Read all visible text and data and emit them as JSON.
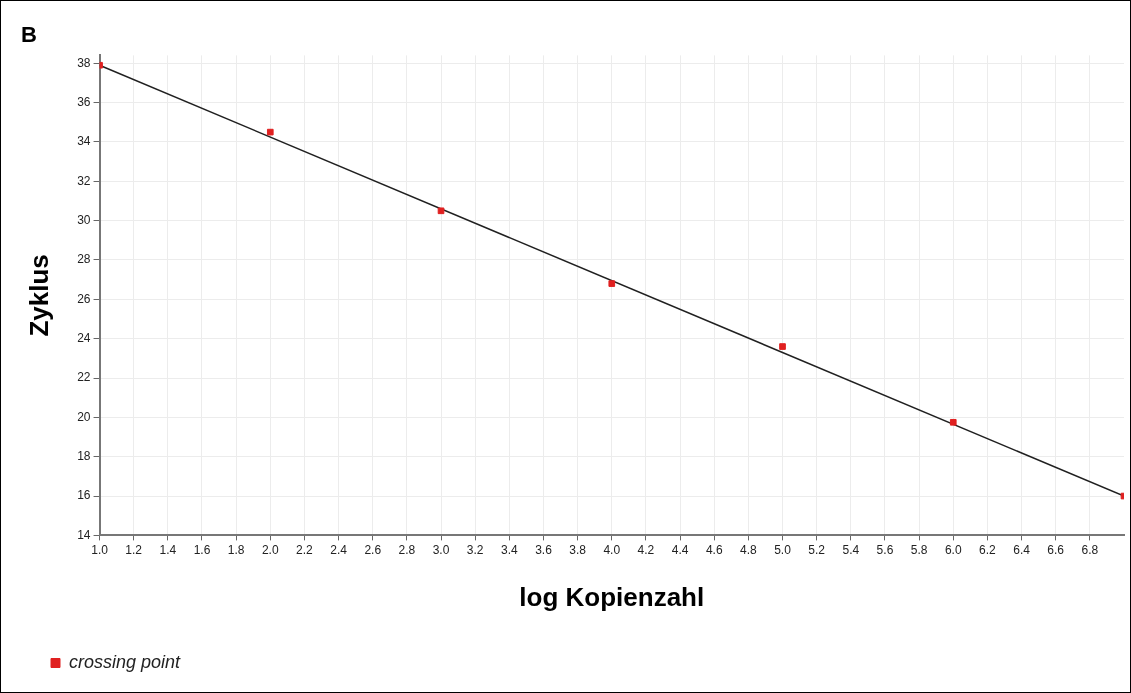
{
  "chart_data": {
    "type": "scatter",
    "title": "B",
    "xlabel": "log Kopienzahl",
    "ylabel": "Zyklus",
    "x": [
      1,
      2,
      3,
      4,
      5,
      6,
      7
    ],
    "series": [
      {
        "name": "crossing point",
        "color": "#e02020",
        "values": [
          37.9,
          34.5,
          30.5,
          26.8,
          23.6,
          19.75,
          16.0
        ],
        "marker": "square"
      },
      {
        "type": "line",
        "color": "#202020",
        "x": [
          1,
          7
        ],
        "values": [
          37.9,
          16.0
        ],
        "marker": "none"
      }
    ],
    "xlim": [
      1,
      7
    ],
    "ylim": [
      14,
      38.4
    ],
    "xticks": [
      {
        "value": 1,
        "label": "1.0"
      },
      {
        "value": 1.2,
        "label": "1.2"
      },
      {
        "value": 1.4,
        "label": "1.4"
      },
      {
        "value": 1.6,
        "label": "1.6"
      },
      {
        "value": 1.8,
        "label": "1.8"
      },
      {
        "value": 2,
        "label": "2.0"
      },
      {
        "value": 2.2,
        "label": "2.2"
      },
      {
        "value": 2.4,
        "label": "2.4"
      },
      {
        "value": 2.6,
        "label": "2.6"
      },
      {
        "value": 2.8,
        "label": "2.8"
      },
      {
        "value": 3,
        "label": "3.0"
      },
      {
        "value": 3.2,
        "label": "3.2"
      },
      {
        "value": 3.4,
        "label": "3.4"
      },
      {
        "value": 3.6,
        "label": "3.6"
      },
      {
        "value": 3.8,
        "label": "3.8"
      },
      {
        "value": 4,
        "label": "4.0"
      },
      {
        "value": 4.2,
        "label": "4.2"
      },
      {
        "value": 4.4,
        "label": "4.4"
      },
      {
        "value": 4.6,
        "label": "4.6"
      },
      {
        "value": 4.8,
        "label": "4.8"
      },
      {
        "value": 5,
        "label": "5.0"
      },
      {
        "value": 5.2,
        "label": "5.2"
      },
      {
        "value": 5.4,
        "label": "5.4"
      },
      {
        "value": 5.6,
        "label": "5.6"
      },
      {
        "value": 5.8,
        "label": "5.8"
      },
      {
        "value": 6,
        "label": "6.0"
      },
      {
        "value": 6.2,
        "label": "6.2"
      },
      {
        "value": 6.4,
        "label": "6.4"
      },
      {
        "value": 6.6,
        "label": "6.6"
      },
      {
        "value": 6.8,
        "label": "6.8"
      }
    ],
    "yticks": [
      14,
      16,
      18,
      20,
      22,
      24,
      26,
      28,
      30,
      32,
      34,
      36,
      38
    ],
    "grid": true,
    "legend": "bottom left"
  }
}
